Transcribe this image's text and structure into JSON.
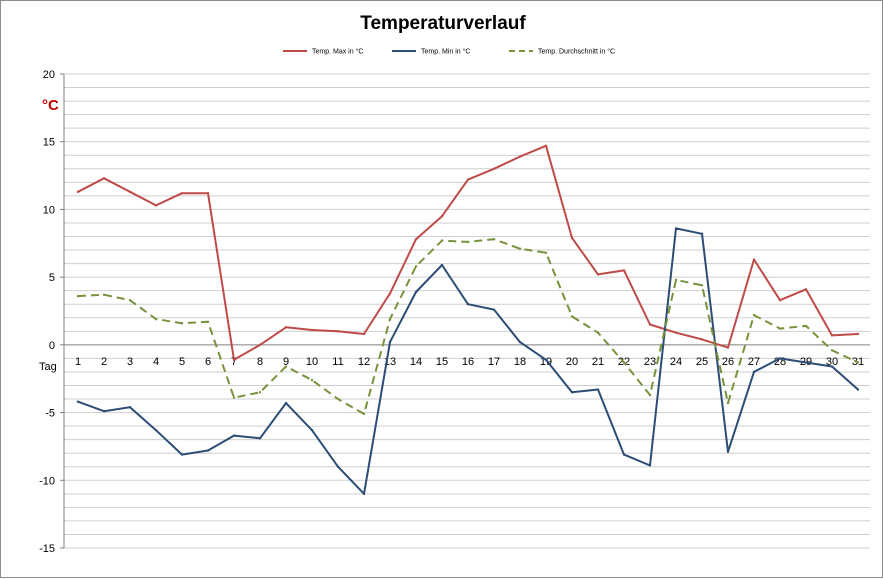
{
  "chart_data": {
    "type": "line",
    "title": "Temperaturverlauf",
    "ylabel": "°C",
    "xlabel": "Tag",
    "ylim": [
      -15,
      20
    ],
    "y_ticks": [
      -15,
      -10,
      -5,
      0,
      5,
      10,
      15,
      20
    ],
    "minor_step": 1,
    "grid": true,
    "legend_position": "top",
    "x": [
      "1",
      "2",
      "3",
      "4",
      "5",
      "6",
      "7",
      "8",
      "9",
      "10",
      "11",
      "12",
      "13",
      "14",
      "15",
      "16",
      "17",
      "18",
      "19",
      "20",
      "21",
      "22",
      "23",
      "24",
      "25",
      "26",
      "27",
      "28",
      "29",
      "30",
      "31"
    ],
    "series": [
      {
        "name": "Temp. Max in °C",
        "color": "#be4b48",
        "dashed": false,
        "values": [
          11.3,
          12.3,
          11.3,
          10.3,
          11.2,
          11.2,
          -1.1,
          0,
          1.3,
          1.1,
          1.0,
          0.8,
          3.8,
          7.8,
          9.5,
          12.2,
          13.0,
          13.9,
          14.7,
          7.9,
          5.2,
          5.5,
          1.5,
          0.9,
          0.4,
          -0.2,
          6.3,
          3.3,
          4.1,
          0.7,
          0.8
        ]
      },
      {
        "name": "Temp. Min in °C",
        "color": "#2c4d75",
        "dashed": false,
        "values": [
          -4.2,
          -4.9,
          -4.6,
          -6.3,
          -8.1,
          -7.8,
          -6.7,
          -6.9,
          -4.3,
          -6.3,
          -9.0,
          -11.0,
          0.2,
          3.9,
          5.9,
          3.0,
          2.6,
          0.2,
          -1.1,
          -3.5,
          -3.3,
          -8.1,
          -8.9,
          8.6,
          8.2,
          -7.9,
          -2.0,
          -1.0,
          -1.3,
          -1.6,
          -3.3
        ]
      },
      {
        "name": "Temp. Durchschnitt in °C",
        "color": "#77933c",
        "dashed": true,
        "values": [
          3.6,
          3.7,
          3.3,
          1.9,
          1.6,
          1.7,
          -3.9,
          -3.5,
          -1.6,
          -2.6,
          -4.0,
          -5.1,
          1.9,
          5.8,
          7.7,
          7.6,
          7.8,
          7.1,
          6.8,
          2.1,
          0.9,
          -1.3,
          -3.7,
          4.8,
          4.4,
          -4.3,
          2.2,
          1.2,
          1.4,
          -0.4,
          -1.3
        ]
      }
    ]
  }
}
